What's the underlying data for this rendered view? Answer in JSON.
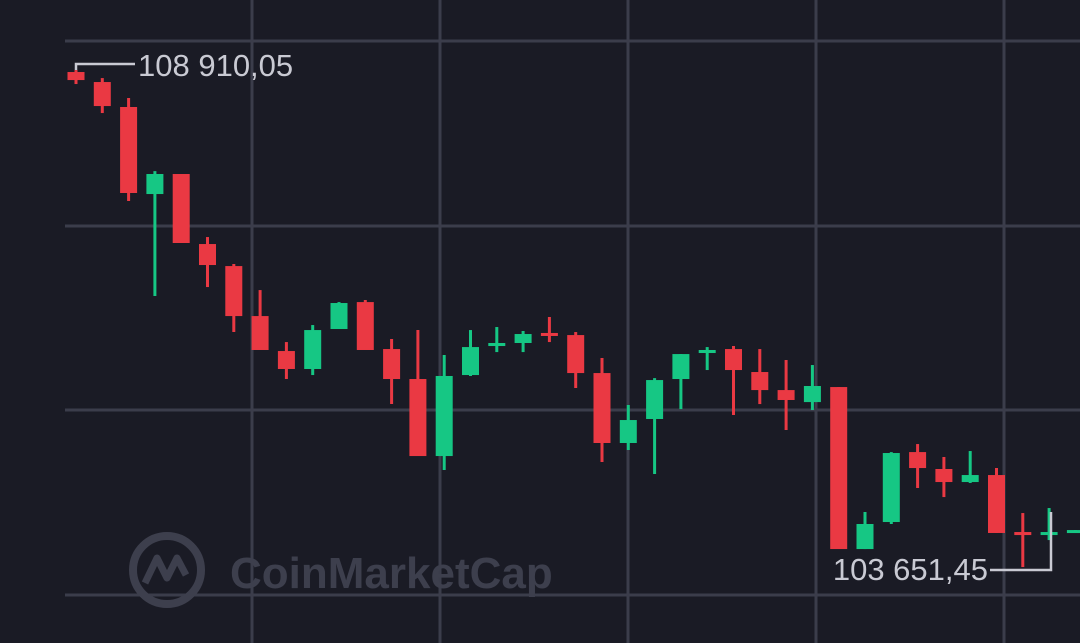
{
  "chart_data": {
    "type": "candlestick",
    "categories": [
      null,
      null,
      null,
      null,
      null,
      null,
      null,
      null,
      null,
      null,
      null,
      null,
      null,
      null,
      null,
      null,
      null,
      null,
      null,
      null,
      null,
      null,
      null,
      null,
      null,
      null,
      null,
      null,
      null,
      null,
      null,
      null,
      null,
      null,
      null,
      null,
      null,
      null,
      null
    ],
    "open": [
      108889,
      108783,
      108519,
      107598,
      107810,
      107069,
      106836,
      106307,
      105937,
      105747,
      106170,
      106455,
      105958,
      105641,
      104826,
      105683,
      105990,
      106022,
      106128,
      106106,
      105704,
      104964,
      105218,
      105641,
      105916,
      105958,
      105715,
      105524,
      105397,
      105556,
      103842,
      104128,
      104868,
      104689,
      104551,
      104625,
      104022,
      104001,
      104033
    ],
    "close": [
      108804,
      108529,
      107609,
      107810,
      107080,
      106847,
      106307,
      105948,
      105747,
      106159,
      106445,
      105948,
      105641,
      104826,
      105673,
      105979,
      106022,
      106117,
      106106,
      105704,
      104964,
      105207,
      105630,
      105905,
      105948,
      105736,
      105524,
      105419,
      105567,
      103842,
      104107,
      104858,
      104699,
      104551,
      104625,
      104012,
      103990,
      104022,
      104043
    ],
    "high": [
      108910.05,
      108825,
      108614,
      107841,
      107810,
      107143,
      106858,
      106582,
      106032,
      106212,
      106455,
      106477,
      106064,
      106159,
      105895,
      106159,
      106191,
      106149,
      106297,
      106138,
      105863,
      105366,
      105651,
      105905,
      105979,
      105990,
      105958,
      105842,
      105789,
      105556,
      104234,
      104868,
      104953,
      104816,
      104879,
      104699,
      104223,
      104276,
      104043
    ],
    "low": [
      108762,
      108455,
      107524,
      106519,
      107080,
      106614,
      106138,
      105948,
      105641,
      105683,
      106170,
      105948,
      105376,
      104826,
      104678,
      105673,
      105926,
      105926,
      106032,
      105546,
      104763,
      104890,
      104636,
      105323,
      105736,
      105260,
      105376,
      105101,
      105313,
      103842,
      103842,
      104107,
      104488,
      104392,
      104541,
      104012,
      103651.45,
      103937,
      104033
    ],
    "up_color": "#16c784",
    "down_color": "#ea3943",
    "ylim": [
      102848,
      109651
    ],
    "grid": true,
    "high_label": {
      "value": 108910.05,
      "label": "108 910,05"
    },
    "low_label": {
      "value": 103651.45,
      "label": "103 651,45"
    },
    "watermark": "CoinMarketCap"
  }
}
